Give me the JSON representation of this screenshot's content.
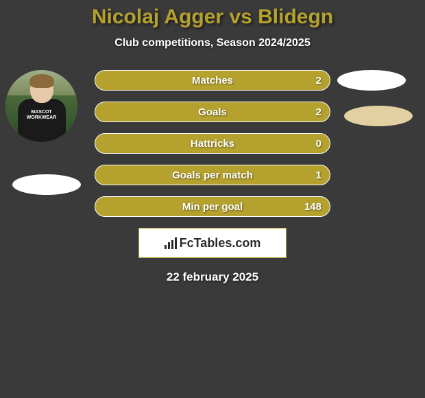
{
  "title": "Nicolaj Agger vs Blidegn",
  "subtitle": "Club competitions, Season 2024/2025",
  "date": "22 february 2025",
  "branding_text": "FcTables.com",
  "player_left": {
    "jersey_line1": "MASCOT",
    "jersey_line2": "WORKWEAR"
  },
  "stats": [
    {
      "label": "Matches",
      "value": "2"
    },
    {
      "label": "Goals",
      "value": "2"
    },
    {
      "label": "Hattricks",
      "value": "0"
    },
    {
      "label": "Goals per match",
      "value": "1"
    },
    {
      "label": "Min per goal",
      "value": "148"
    }
  ],
  "colors": {
    "background": "#3a3a3a",
    "accent": "#b5a22e",
    "stat_bar_border": "#ffffff",
    "text": "#ffffff",
    "oval_light": "#ffffff",
    "oval_tan": "#e2cfa2"
  }
}
